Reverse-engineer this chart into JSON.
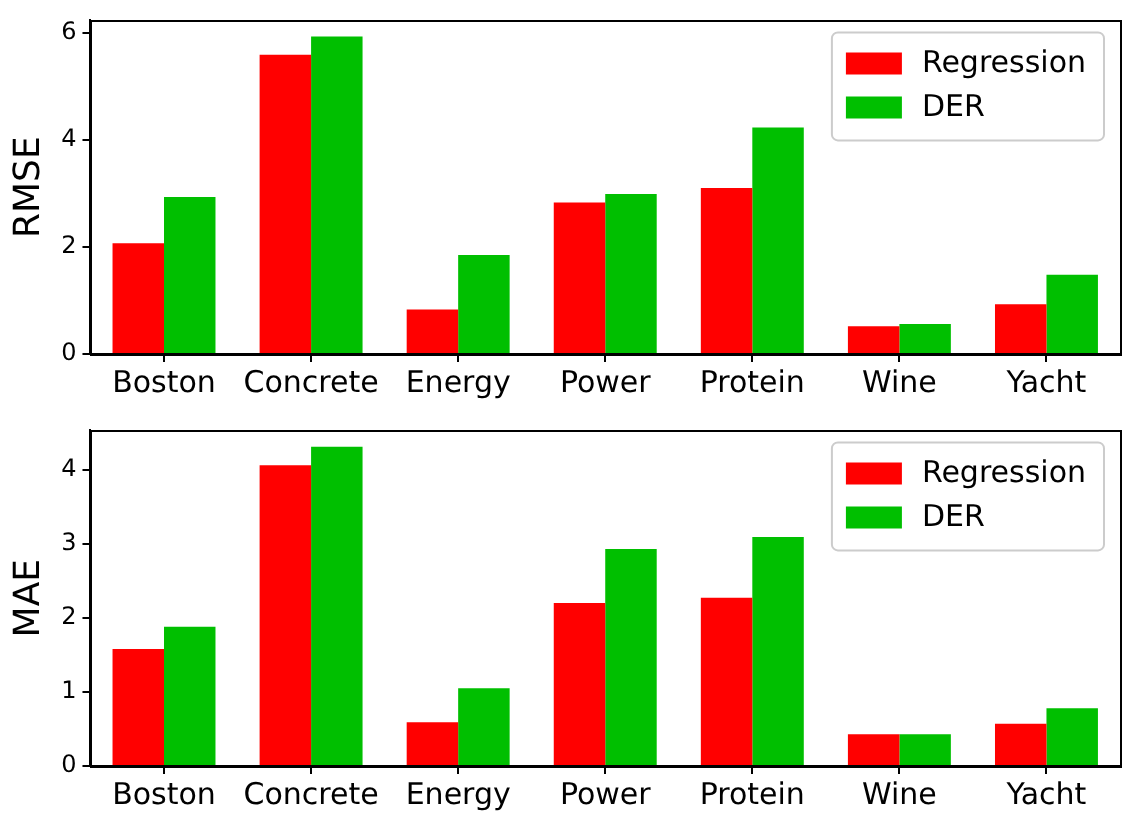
{
  "chart_data": [
    {
      "type": "bar",
      "ylabel": "RMSE",
      "categories": [
        "Boston",
        "Concrete",
        "Energy",
        "Power",
        "Protein",
        "Wine",
        "Yacht"
      ],
      "series": [
        {
          "name": "Regression",
          "color": "#ff0000",
          "values": [
            2.07,
            5.59,
            0.83,
            2.83,
            3.1,
            0.52,
            0.93
          ]
        },
        {
          "name": "DER",
          "color": "#00bf00",
          "values": [
            2.93,
            5.93,
            1.85,
            2.99,
            4.23,
            0.56,
            1.48
          ]
        }
      ],
      "ylim": [
        0,
        6.23
      ],
      "yticks": [
        0,
        2,
        4,
        6
      ],
      "grid": false,
      "legend": "top right"
    },
    {
      "type": "bar",
      "ylabel": "MAE",
      "categories": [
        "Boston",
        "Concrete",
        "Energy",
        "Power",
        "Protein",
        "Wine",
        "Yacht"
      ],
      "series": [
        {
          "name": "Regression",
          "color": "#ff0000",
          "values": [
            1.58,
            4.06,
            0.59,
            2.2,
            2.27,
            0.43,
            0.57
          ]
        },
        {
          "name": "DER",
          "color": "#00bf00",
          "values": [
            1.88,
            4.31,
            1.05,
            2.93,
            3.09,
            0.43,
            0.78
          ]
        }
      ],
      "ylim": [
        0,
        4.53
      ],
      "yticks": [
        0,
        1,
        2,
        3,
        4
      ],
      "grid": false,
      "legend": "top right"
    }
  ]
}
